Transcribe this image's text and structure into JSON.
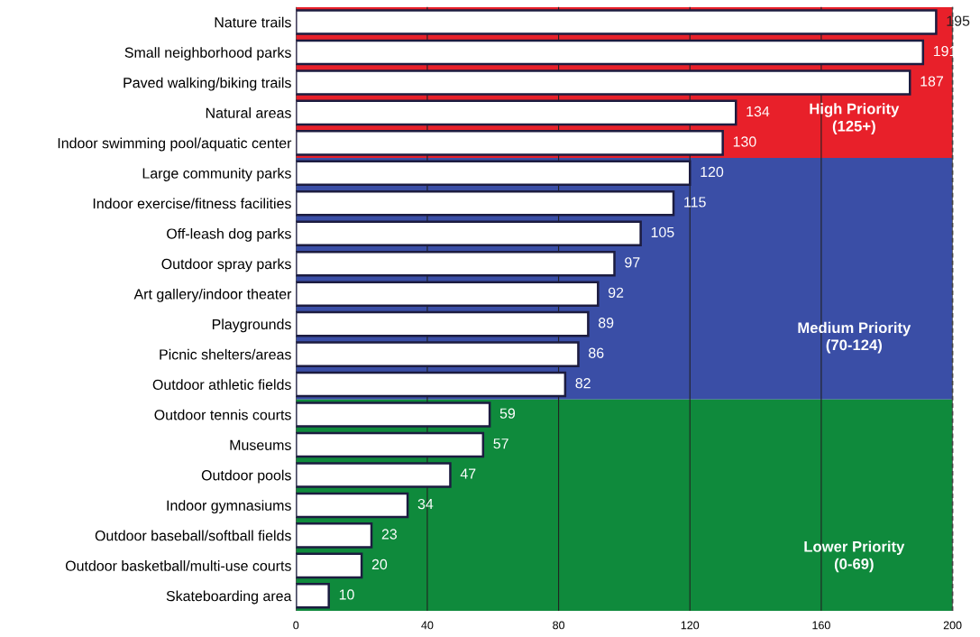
{
  "chart_data": {
    "type": "bar",
    "orientation": "horizontal",
    "categories": [
      "Nature trails",
      "Small neighborhood parks",
      "Paved walking/biking trails",
      "Natural areas",
      "Indoor swimming pool/aquatic center",
      "Large community parks",
      "Indoor exercise/fitness facilities",
      "Off-leash dog parks",
      "Outdoor spray parks",
      "Art gallery/indoor theater",
      "Playgrounds",
      "Picnic shelters/areas",
      "Outdoor athletic fields",
      "Outdoor tennis courts",
      "Museums",
      "Outdoor pools",
      "Indoor gymnasiums",
      "Outdoor baseball/softball fields",
      "Outdoor basketball/multi-use courts",
      "Skateboarding area"
    ],
    "values": [
      195,
      191,
      187,
      134,
      130,
      120,
      115,
      105,
      97,
      92,
      89,
      86,
      82,
      59,
      57,
      47,
      34,
      23,
      20,
      10
    ],
    "color": "#ffffff",
    "data_labels": true,
    "xlim": [
      0,
      200
    ],
    "xticks": [
      0,
      40,
      80,
      120,
      160,
      200
    ],
    "grid": "x",
    "bands": [
      {
        "axis": "y",
        "from": "Nature trails",
        "to": "Indoor swimming pool/aquatic center",
        "label": "High Priority\n(125+)",
        "color": "#e8202a"
      },
      {
        "axis": "y",
        "from": "Large community parks",
        "to": "Outdoor athletic fields",
        "label": "Medium Priority\n(70-124)",
        "color": "#3a4ea6"
      },
      {
        "axis": "y",
        "from": "Outdoor tennis courts",
        "to": "Skateboarding area",
        "label": "Lower Priority\n(0-69)",
        "color": "#0f8a3c"
      }
    ],
    "ref_lines": [
      {
        "axis": "x",
        "value": 200,
        "color": "#444444",
        "line_style": "dashed"
      }
    ]
  }
}
